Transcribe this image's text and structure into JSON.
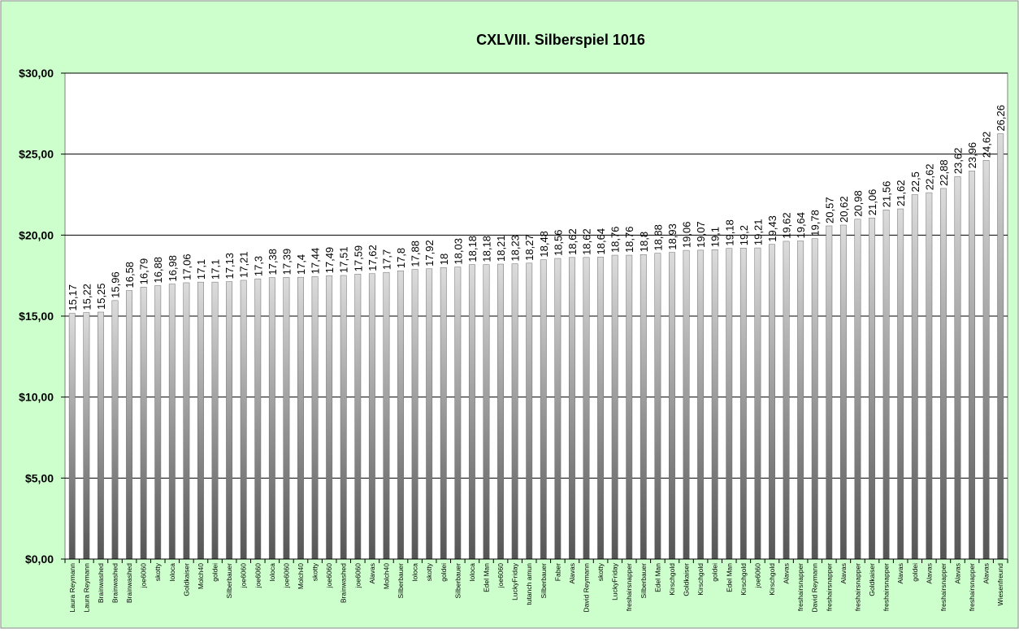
{
  "chart_data": {
    "type": "bar",
    "title": "CXLVIII.  Silberspiel 1016",
    "xlabel": "",
    "ylabel": "",
    "ylim": [
      0,
      30
    ],
    "yticks": [
      "$0,00",
      "$5,00",
      "$10,00",
      "$15,00",
      "$20,00",
      "$25,00",
      "$30,00"
    ],
    "grid": true,
    "legend": "none",
    "colors": {
      "background": "#ccffcc",
      "plot_area": "#ffffff",
      "bar_light": "#d9d9d9",
      "bar_dark": "#555555"
    },
    "categories": [
      "Laura Reymann",
      "Laura Reymann",
      "Brainwashed",
      "Brainwashed",
      "Brainwashed",
      "joe6060",
      "skotty",
      "loloca",
      "Goldkaiser",
      "Molch40",
      "goldei",
      "Silberbauer",
      "joe6060",
      "joe6060",
      "loloca",
      "joe6060",
      "Molch40",
      "skotty",
      "joe6060",
      "Brainwashed",
      "joe6060",
      "Alavas",
      "Molch40",
      "Silberbauer",
      "loloca",
      "skotty",
      "goldei",
      "Silberbauer",
      "loloca",
      "Edel Man",
      "joe6060",
      "LuckyFriday",
      "tutanch amun",
      "Silberbauer",
      "Faber",
      "Alavas",
      "David Reymann",
      "skotty",
      "LuckyFriday",
      "freshairsnapper",
      "Silberbauer",
      "Edel Man",
      "Kirschgold",
      "Goldkaiser",
      "Kirschgold",
      "goldei",
      "Edel Man",
      "Kirschgold",
      "joe6060",
      "Kirschgold",
      "Alavas",
      "freshairsnapper",
      "David Reymann",
      "freshairsnapper",
      "Alavas",
      "freshairsnapper",
      "Goldkaiser",
      "freshairsnapper",
      "Alavas",
      "goldei",
      "Alavas",
      "freshairsnapper",
      "Alavas",
      "freshairsnapper",
      "Alavas",
      "Wiesenfreund"
    ],
    "values": [
      15.17,
      15.22,
      15.25,
      15.96,
      16.58,
      16.79,
      16.88,
      16.98,
      17.06,
      17.1,
      17.1,
      17.13,
      17.21,
      17.3,
      17.38,
      17.39,
      17.4,
      17.44,
      17.49,
      17.51,
      17.59,
      17.62,
      17.7,
      17.8,
      17.88,
      17.92,
      18,
      18.03,
      18.18,
      18.18,
      18.21,
      18.23,
      18.27,
      18.48,
      18.56,
      18.62,
      18.62,
      18.64,
      18.76,
      18.76,
      18.8,
      18.88,
      18.93,
      19.06,
      19.07,
      19.1,
      19.18,
      19.2,
      19.21,
      19.43,
      19.62,
      19.64,
      19.78,
      20.57,
      20.62,
      20.98,
      21.06,
      21.56,
      21.62,
      22.5,
      22.62,
      22.88,
      23.62,
      23.96,
      24.62,
      26.26
    ],
    "value_labels": [
      "15,17",
      "15,22",
      "15,25",
      "15,96",
      "16,58",
      "16,79",
      "16,88",
      "16,98",
      "17,06",
      "17,1",
      "17,1",
      "17,13",
      "17,21",
      "17,3",
      "17,38",
      "17,39",
      "17,4",
      "17,44",
      "17,49",
      "17,51",
      "17,59",
      "17,62",
      "17,7",
      "17,8",
      "17,88",
      "17,92",
      "18",
      "18,03",
      "18,18",
      "18,18",
      "18,21",
      "18,23",
      "18,27",
      "18,48",
      "18,56",
      "18,62",
      "18,62",
      "18,64",
      "18,76",
      "18,76",
      "18,8",
      "18,88",
      "18,93",
      "19,06",
      "19,07",
      "19,1",
      "19,18",
      "19,2",
      "19,21",
      "19,43",
      "19,62",
      "19,64",
      "19,78",
      "20,57",
      "20,62",
      "20,98",
      "21,06",
      "21,56",
      "21,62",
      "22,5",
      "22,62",
      "22,88",
      "23,62",
      "23,96",
      "24,62",
      "26,26"
    ]
  }
}
